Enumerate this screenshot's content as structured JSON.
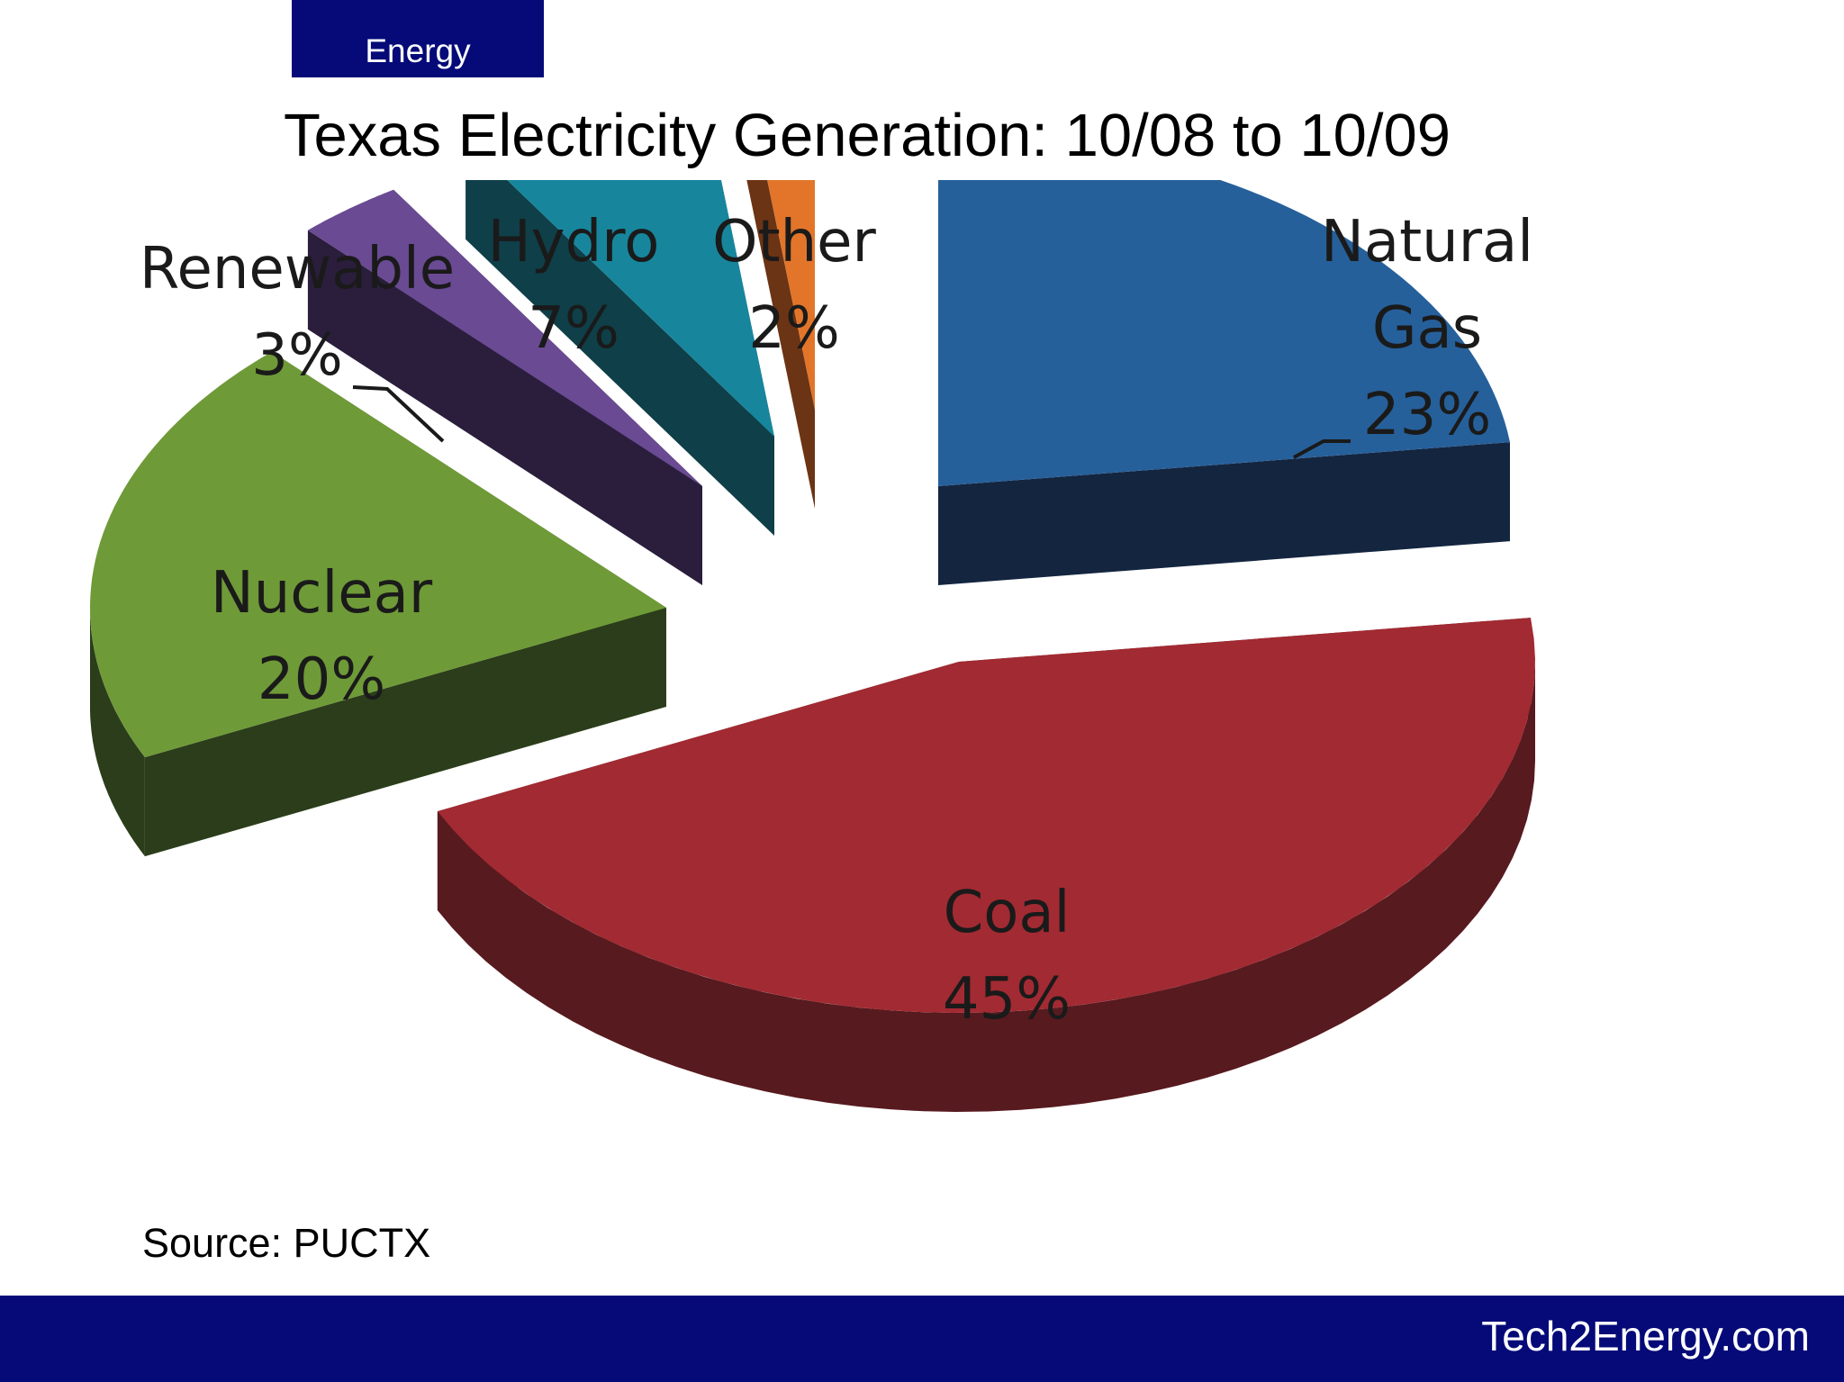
{
  "header": {
    "tab_label": "Energy",
    "title": "Texas Electricity Generation: 10/08 to 10/09"
  },
  "chart_data": {
    "type": "pie",
    "style": "3d-exploded",
    "title": "Texas Electricity Generation: 10/08 to 10/09",
    "categories": [
      "Natural Gas",
      "Coal",
      "Nuclear",
      "Renewable",
      "Hydro",
      "Other"
    ],
    "values": [
      23,
      45,
      20,
      3,
      7,
      2
    ],
    "unit": "%",
    "labels": [
      {
        "lines": [
          "Natural",
          "Gas",
          "23%"
        ]
      },
      {
        "lines": [
          "Coal",
          "45%"
        ]
      },
      {
        "lines": [
          "Nuclear",
          "20%"
        ]
      },
      {
        "lines": [
          "Renewable",
          "3%"
        ]
      },
      {
        "lines": [
          "Hydro",
          "7%"
        ]
      },
      {
        "lines": [
          "Other",
          "2%"
        ]
      }
    ],
    "colors": [
      "#26609b",
      "#a22a32",
      "#6f9a38",
      "#6a4a93",
      "#17869d",
      "#e2752a"
    ],
    "side_colors": [
      "#14253f",
      "#571a1f",
      "#2b3d1a",
      "#2a1e3c",
      "#0f3f48",
      "#6b3414"
    ]
  },
  "source": "Source: PUCTX",
  "footer": {
    "site": "Tech2Energy.com"
  }
}
